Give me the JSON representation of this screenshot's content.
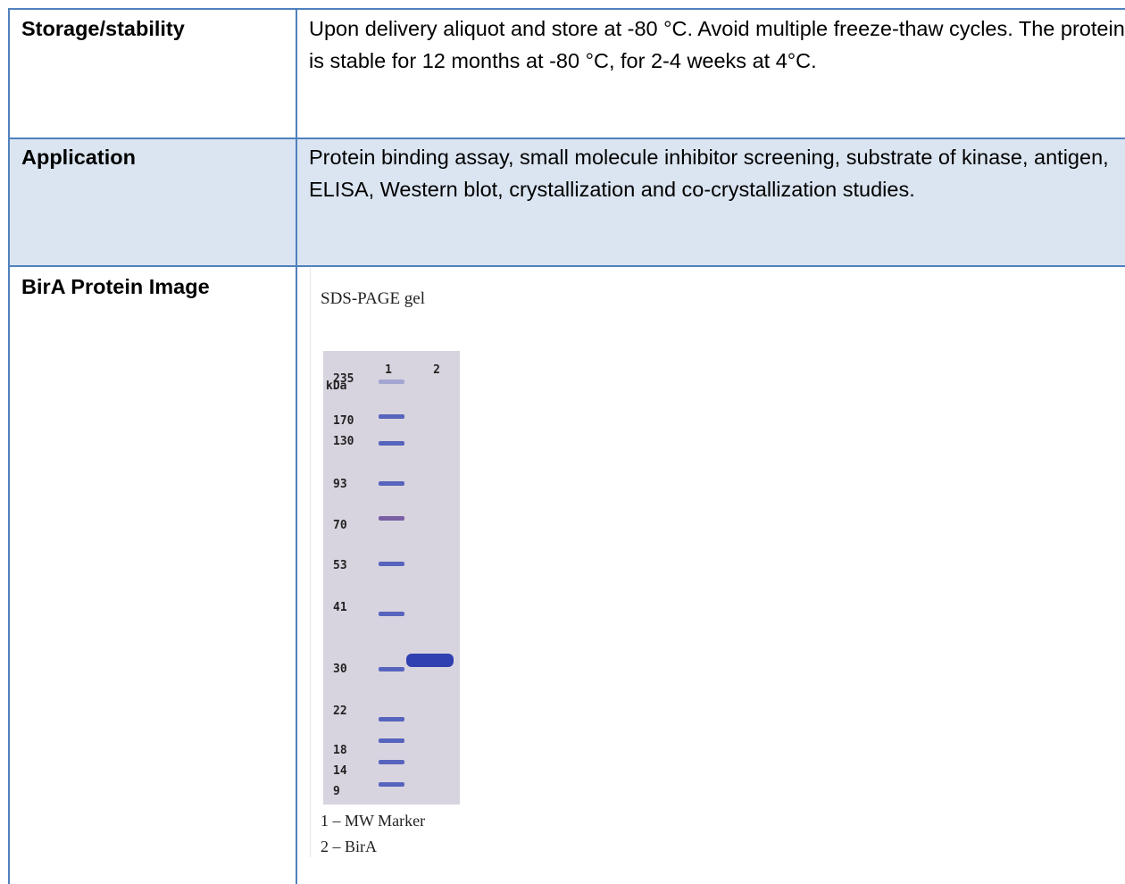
{
  "table": {
    "rows": [
      [
        "Storage/stability",
        "Upon delivery aliquot and store at -80 °C. Avoid multiple freeze-thaw cycles. The protein is stable for 12 months at -80 °C, for 2-4 weeks at 4°C."
      ],
      [
        "Application",
        "Protein binding assay, small molecule inhibitor screening, substrate of kinase, antigen, ELISA, Western blot, crystallization and co-crystallization studies."
      ],
      [
        "BirA Protein Image"
      ]
    ]
  },
  "image": {
    "title": "SDS-PAGE gel",
    "unit": "kDa",
    "lanes": [
      "1",
      "2"
    ],
    "markers": [
      "235",
      "170",
      "130",
      "93",
      "70",
      "53",
      "41",
      "30",
      "22",
      "18",
      "14",
      "9"
    ],
    "legend": [
      "1 – MW Marker",
      "2 – BirA"
    ]
  }
}
